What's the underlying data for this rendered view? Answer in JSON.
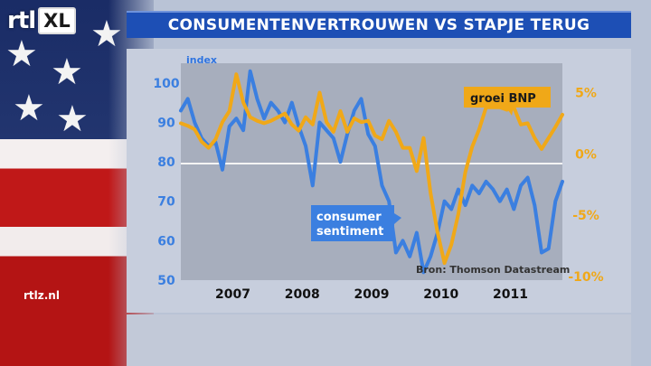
{
  "logo": {
    "brand": "rtl",
    "suffix": "XL"
  },
  "banner": {
    "title": "CONSUMENTENVERTROUWEN VS STAPJE TERUG"
  },
  "footer": {
    "site": "rtlz.nl"
  },
  "icons": [
    "flag-stars-icon"
  ],
  "colors": {
    "consumer_sentiment": "#3b7fe0",
    "groei_bnp": "#f0a818",
    "banner": "#1d4fb5"
  },
  "chart_data": {
    "type": "line",
    "title": "",
    "left_axis": {
      "label": "index",
      "ylim": [
        50,
        105
      ],
      "ticks": [
        "100",
        "90",
        "80",
        "70",
        "60",
        "50"
      ]
    },
    "right_axis": {
      "ylim": [
        -10.3,
        7.4
      ],
      "ticks": [
        "5%",
        "0%",
        "-5%",
        "-10%"
      ]
    },
    "x_ticks": [
      "2007",
      "2008",
      "2009",
      "2010",
      "2011"
    ],
    "source": "Bron: Thomson Datastream",
    "grid": "single reference line at 0% / 80",
    "series": [
      {
        "name": "consumer sentiment",
        "axis": "left",
        "x": [
          2006.5,
          2006.6,
          2006.7,
          2006.8,
          2006.9,
          2007.0,
          2007.1,
          2007.2,
          2007.3,
          2007.4,
          2007.5,
          2007.6,
          2007.7,
          2007.8,
          2007.9,
          2008.0,
          2008.1,
          2008.2,
          2008.3,
          2008.4,
          2008.5,
          2008.6,
          2008.7,
          2008.8,
          2008.9,
          2009.0,
          2009.1,
          2009.2,
          2009.3,
          2009.4,
          2009.5,
          2009.6,
          2009.7,
          2009.8,
          2009.9,
          2010.0,
          2010.1,
          2010.2,
          2010.3,
          2010.4,
          2010.5,
          2010.6,
          2010.7,
          2010.8,
          2010.9,
          2011.0,
          2011.1,
          2011.2,
          2011.3,
          2011.4,
          2011.5,
          2011.6,
          2011.7,
          2011.8,
          2011.9,
          2012.0
        ],
        "values": [
          93,
          96,
          90,
          86,
          84,
          85,
          78,
          89,
          91,
          88,
          103,
          96,
          91,
          95,
          93,
          90,
          95,
          89,
          84,
          74,
          90,
          88,
          86,
          80,
          87,
          93,
          96,
          87,
          84,
          74,
          70,
          57,
          60,
          56,
          62,
          52,
          56,
          62,
          70,
          68,
          73,
          69,
          74,
          72,
          75,
          73,
          70,
          73,
          68,
          74,
          76,
          69,
          57,
          58,
          70,
          75
        ],
        "callout": "consumer\nsentiment"
      },
      {
        "name": "groei BNP",
        "axis": "right",
        "x": [
          2006.5,
          2006.6,
          2006.7,
          2006.8,
          2006.9,
          2007.0,
          2007.1,
          2007.2,
          2007.3,
          2007.4,
          2007.5,
          2007.6,
          2007.7,
          2007.8,
          2007.9,
          2008.0,
          2008.1,
          2008.2,
          2008.3,
          2008.4,
          2008.5,
          2008.6,
          2008.7,
          2008.8,
          2008.9,
          2009.0,
          2009.1,
          2009.2,
          2009.3,
          2009.4,
          2009.5,
          2009.6,
          2009.7,
          2009.8,
          2009.9,
          2010.0,
          2010.1,
          2010.2,
          2010.3,
          2010.4,
          2010.5,
          2010.6,
          2010.7,
          2010.8,
          2010.9,
          2011.0,
          2011.1,
          2011.2,
          2011.3,
          2011.4,
          2011.5,
          2011.6,
          2011.7,
          2011.8,
          2011.9,
          2012.0
        ],
        "values": [
          2.5,
          2.3,
          2.0,
          1.0,
          0.5,
          1.2,
          2.6,
          3.5,
          6.5,
          4.2,
          3.0,
          2.7,
          2.5,
          2.7,
          3.0,
          3.3,
          2.4,
          1.9,
          3.0,
          2.4,
          5.0,
          2.6,
          1.8,
          3.5,
          1.8,
          2.9,
          2.6,
          2.7,
          1.5,
          1.2,
          2.7,
          1.8,
          0.5,
          0.5,
          -1.4,
          1.3,
          -3.2,
          -6.4,
          -8.9,
          -7.4,
          -4.9,
          -1.5,
          0.6,
          2.0,
          3.8,
          3.8,
          3.8,
          3.6,
          3.8,
          2.4,
          2.5,
          1.3,
          0.4,
          1.3,
          2.2,
          3.2
        ],
        "callout": "groei BNP"
      }
    ]
  }
}
